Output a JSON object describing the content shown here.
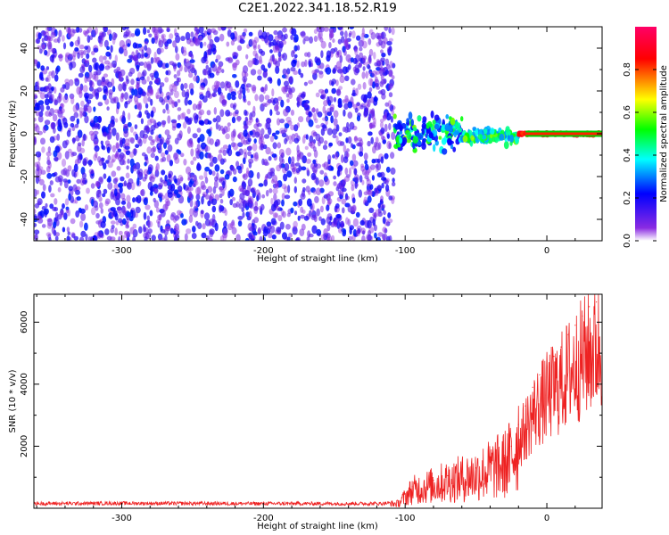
{
  "title": "C2E1.2022.341.18.52.R19",
  "chart_data": [
    {
      "type": "heatmap",
      "xlabel": "Height of straight line (km)",
      "ylabel": "Frequency (Hz)",
      "xlim": [
        -362,
        39
      ],
      "ylim": [
        -50,
        50
      ],
      "xticks": [
        -300,
        -200,
        -100,
        0
      ],
      "yticks": [
        -40,
        -20,
        0,
        20,
        40
      ],
      "colorbar": {
        "label": "Normalized spectral amplitude",
        "range": [
          0,
          1
        ],
        "ticks": [
          0.0,
          0.2,
          0.4,
          0.6,
          0.8
        ],
        "colormap": "rainbow",
        "colors": [
          "#ffffff",
          "#8a2be2",
          "#0000ff",
          "#00ffff",
          "#00ff00",
          "#ffff00",
          "#ff0000",
          "#ff0066"
        ]
      },
      "grid": false,
      "features": [
        {
          "x_range": [
            -362,
            -108
          ],
          "y_range": [
            -50,
            50
          ],
          "amplitude": [
            0.05,
            0.25
          ],
          "description": "broadband noise"
        },
        {
          "x_range": [
            -108,
            -60
          ],
          "y_range": [
            -12,
            12
          ],
          "amplitude": [
            0.2,
            0.6
          ]
        },
        {
          "x_range": [
            -60,
            -20
          ],
          "y_range": [
            -6,
            4
          ],
          "amplitude": [
            0.3,
            0.6
          ]
        },
        {
          "x_range": [
            -20,
            39
          ],
          "y_range": [
            -1,
            1
          ],
          "amplitude": [
            0.8,
            1.0
          ]
        }
      ]
    },
    {
      "type": "line",
      "xlabel": "Height of straight line (km)",
      "ylabel": "SNR (10 * v/v)",
      "xlim": [
        -362,
        39
      ],
      "ylim": [
        0,
        6900
      ],
      "xticks": [
        -300,
        -200,
        -100,
        0
      ],
      "yticks": [
        2000,
        4000,
        6000
      ],
      "color": "#ee2222",
      "grid": false,
      "x": [
        -362,
        -300,
        -200,
        -120,
        -105,
        -95,
        -80,
        -70,
        -60,
        -50,
        -40,
        -30,
        -25,
        -20,
        -15,
        -10,
        -5,
        0,
        5,
        10,
        15,
        20,
        25,
        30,
        35,
        39
      ],
      "y": [
        150,
        160,
        150,
        150,
        180,
        700,
        900,
        1050,
        1150,
        1300,
        1500,
        1700,
        2000,
        2700,
        3300,
        3900,
        4300,
        4600,
        4900,
        5200,
        5600,
        5900,
        6200,
        6500,
        6650,
        6750
      ]
    }
  ]
}
